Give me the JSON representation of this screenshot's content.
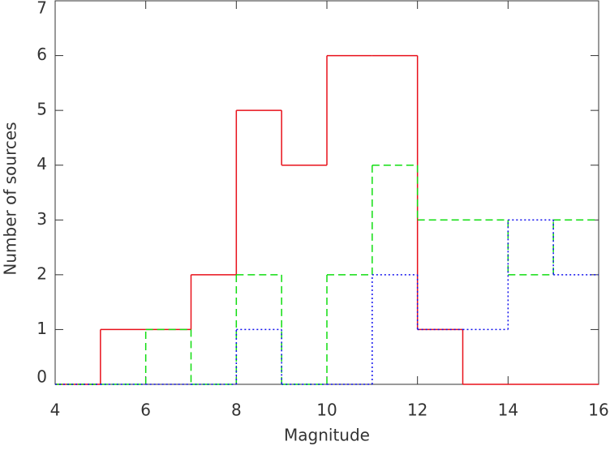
{
  "chart_data": {
    "type": "histogram",
    "xlabel": "Magnitude",
    "ylabel": "Number of sources",
    "bins": [
      4,
      5,
      6,
      7,
      8,
      9,
      10,
      11,
      12,
      13,
      14,
      15,
      16
    ],
    "series": [
      {
        "color": "#e8101a",
        "dash": "solid",
        "values": [
          0,
          1,
          1,
          2,
          5,
          4,
          6,
          6,
          1,
          0,
          0,
          0
        ]
      },
      {
        "color": "#10dd10",
        "dash": "dashed",
        "values": [
          0,
          0,
          1,
          0,
          2,
          0,
          2,
          4,
          3,
          3,
          2,
          3
        ]
      },
      {
        "color": "#1010ee",
        "dash": "dotted",
        "values": [
          0,
          0,
          0,
          0,
          1,
          0,
          0,
          2,
          1,
          1,
          3,
          2
        ]
      }
    ],
    "xlim": [
      4,
      16
    ],
    "ylim": [
      0,
      7
    ],
    "xticks": [
      4,
      6,
      8,
      10,
      12,
      14,
      16
    ],
    "yticks": [
      0,
      1,
      2,
      3,
      4,
      5,
      6,
      7
    ]
  }
}
